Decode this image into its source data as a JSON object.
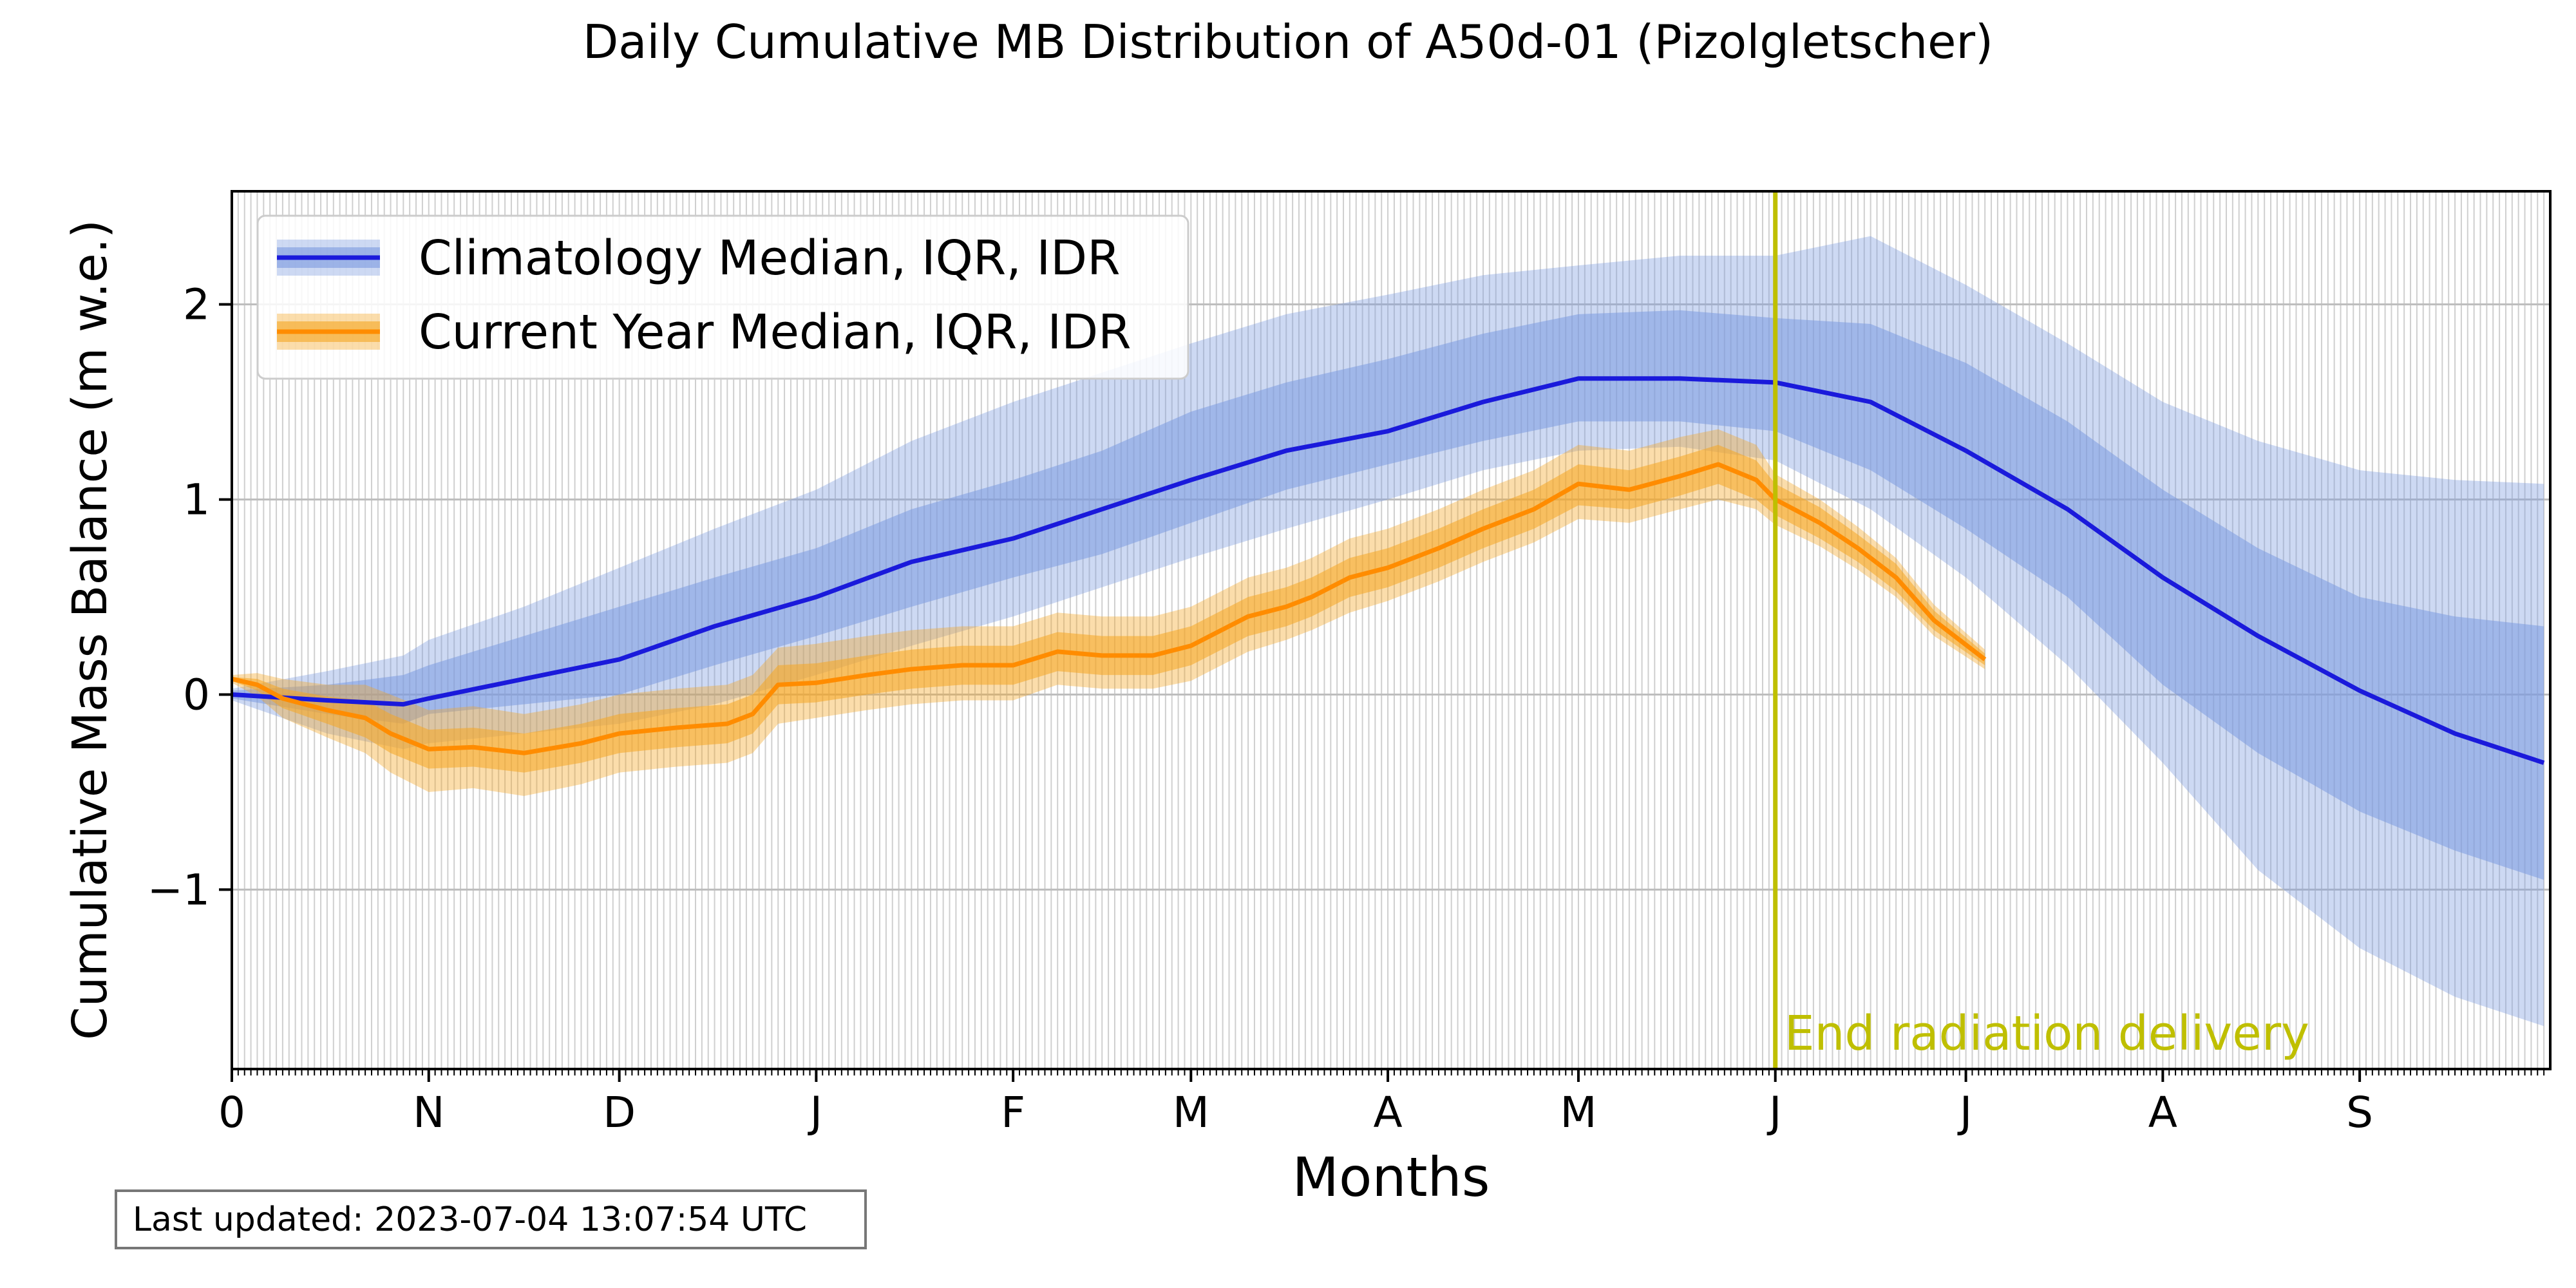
{
  "chart_data": {
    "type": "area",
    "title": "Daily Cumulative MB Distribution of A50d-01 (Pizolgletscher)",
    "xlabel": "Months",
    "ylabel": "Cumulative Mass Balance (m w.e.)",
    "x_ticks": [
      {
        "day": 0,
        "label": "0"
      },
      {
        "day": 31,
        "label": "N"
      },
      {
        "day": 61,
        "label": "D"
      },
      {
        "day": 92,
        "label": "J"
      },
      {
        "day": 123,
        "label": "F"
      },
      {
        "day": 151,
        "label": "M"
      },
      {
        "day": 182,
        "label": "A"
      },
      {
        "day": 212,
        "label": "M"
      },
      {
        "day": 243,
        "label": "J"
      },
      {
        "day": 273,
        "label": "J"
      },
      {
        "day": 304,
        "label": "A"
      },
      {
        "day": 335,
        "label": "S"
      }
    ],
    "xlim": [
      0,
      365
    ],
    "ylim": [
      -1.92,
      2.58
    ],
    "y_ticks": [
      -1,
      0,
      1,
      2
    ],
    "grid": true,
    "legend_position": "top-left",
    "series": [
      {
        "name": "Climatology Median, IQR, IDR",
        "color": "#1a1adb",
        "fill_color": "#7b9ae0",
        "x": [
          0,
          15,
          27,
          31,
          46,
          61,
          76,
          92,
          107,
          123,
          137,
          151,
          166,
          182,
          197,
          212,
          228,
          243,
          258,
          273,
          289,
          304,
          319,
          335,
          350,
          364
        ],
        "median": [
          0.0,
          -0.03,
          -0.05,
          -0.02,
          0.08,
          0.18,
          0.35,
          0.5,
          0.68,
          0.8,
          0.95,
          1.1,
          1.25,
          1.35,
          1.5,
          1.62,
          1.62,
          1.6,
          1.5,
          1.25,
          0.95,
          0.6,
          0.3,
          0.02,
          -0.2,
          -0.35
        ],
        "iqr_low": [
          -0.02,
          -0.1,
          -0.15,
          -0.1,
          -0.05,
          0.0,
          0.15,
          0.3,
          0.45,
          0.6,
          0.72,
          0.88,
          1.05,
          1.18,
          1.3,
          1.4,
          1.4,
          1.35,
          1.15,
          0.85,
          0.5,
          0.05,
          -0.3,
          -0.6,
          -0.8,
          -0.95
        ],
        "iqr_high": [
          0.02,
          0.05,
          0.1,
          0.15,
          0.3,
          0.45,
          0.6,
          0.75,
          0.95,
          1.1,
          1.25,
          1.45,
          1.6,
          1.72,
          1.85,
          1.95,
          1.97,
          1.93,
          1.9,
          1.7,
          1.4,
          1.05,
          0.75,
          0.5,
          0.4,
          0.35
        ],
        "idr_low": [
          -0.03,
          -0.2,
          -0.28,
          -0.25,
          -0.2,
          -0.15,
          -0.05,
          0.1,
          0.25,
          0.4,
          0.55,
          0.7,
          0.85,
          1.0,
          1.15,
          1.25,
          1.27,
          1.2,
          0.95,
          0.6,
          0.15,
          -0.35,
          -0.9,
          -1.3,
          -1.55,
          -1.7
        ],
        "idr_high": [
          0.03,
          0.12,
          0.2,
          0.28,
          0.45,
          0.65,
          0.85,
          1.05,
          1.3,
          1.5,
          1.65,
          1.8,
          1.95,
          2.05,
          2.15,
          2.2,
          2.25,
          2.25,
          2.35,
          2.1,
          1.8,
          1.5,
          1.3,
          1.15,
          1.1,
          1.08
        ]
      },
      {
        "name": "Current Year Median, IQR, IDR",
        "color": "#ff8c00",
        "fill_color": "#f5a623",
        "x": [
          0,
          4,
          8,
          15,
          21,
          25,
          31,
          38,
          46,
          55,
          61,
          70,
          78,
          82,
          86,
          92,
          100,
          107,
          115,
          123,
          130,
          137,
          145,
          151,
          160,
          166,
          170,
          176,
          182,
          190,
          197,
          205,
          212,
          220,
          228,
          234,
          240,
          243,
          250,
          256,
          262,
          268,
          276
        ],
        "median": [
          0.08,
          0.05,
          -0.02,
          -0.08,
          -0.12,
          -0.2,
          -0.28,
          -0.27,
          -0.3,
          -0.25,
          -0.2,
          -0.17,
          -0.15,
          -0.1,
          0.05,
          0.06,
          0.1,
          0.13,
          0.15,
          0.15,
          0.22,
          0.2,
          0.2,
          0.25,
          0.4,
          0.45,
          0.5,
          0.6,
          0.65,
          0.75,
          0.85,
          0.95,
          1.08,
          1.05,
          1.12,
          1.18,
          1.1,
          1.0,
          0.88,
          0.75,
          0.6,
          0.38,
          0.18
        ],
        "iqr_low": [
          0.07,
          0.02,
          -0.07,
          -0.15,
          -0.22,
          -0.3,
          -0.38,
          -0.37,
          -0.4,
          -0.35,
          -0.3,
          -0.27,
          -0.25,
          -0.2,
          -0.05,
          -0.04,
          0.0,
          0.03,
          0.05,
          0.05,
          0.12,
          0.1,
          0.1,
          0.15,
          0.3,
          0.35,
          0.4,
          0.5,
          0.55,
          0.65,
          0.75,
          0.85,
          0.97,
          0.95,
          1.02,
          1.08,
          1.0,
          0.92,
          0.8,
          0.68,
          0.53,
          0.33,
          0.15
        ],
        "iqr_high": [
          0.09,
          0.08,
          0.03,
          -0.01,
          -0.03,
          -0.1,
          -0.18,
          -0.17,
          -0.2,
          -0.15,
          -0.1,
          -0.07,
          -0.05,
          0.0,
          0.15,
          0.16,
          0.2,
          0.23,
          0.25,
          0.25,
          0.32,
          0.3,
          0.3,
          0.35,
          0.5,
          0.55,
          0.6,
          0.7,
          0.75,
          0.85,
          0.95,
          1.05,
          1.18,
          1.15,
          1.22,
          1.28,
          1.2,
          1.08,
          0.96,
          0.82,
          0.67,
          0.43,
          0.21
        ],
        "idr_low": [
          0.06,
          -0.01,
          -0.12,
          -0.22,
          -0.3,
          -0.4,
          -0.5,
          -0.48,
          -0.52,
          -0.46,
          -0.4,
          -0.37,
          -0.35,
          -0.3,
          -0.15,
          -0.12,
          -0.08,
          -0.05,
          -0.03,
          -0.03,
          0.05,
          0.03,
          0.03,
          0.07,
          0.22,
          0.28,
          0.33,
          0.42,
          0.48,
          0.58,
          0.68,
          0.78,
          0.9,
          0.88,
          0.95,
          1.0,
          0.95,
          0.87,
          0.76,
          0.64,
          0.5,
          0.3,
          0.13
        ],
        "idr_high": [
          0.1,
          0.11,
          0.08,
          0.05,
          0.05,
          0.0,
          -0.08,
          -0.06,
          -0.1,
          -0.05,
          0.0,
          0.03,
          0.05,
          0.1,
          0.24,
          0.26,
          0.3,
          0.33,
          0.35,
          0.35,
          0.42,
          0.4,
          0.4,
          0.45,
          0.6,
          0.65,
          0.7,
          0.8,
          0.85,
          0.95,
          1.05,
          1.15,
          1.28,
          1.25,
          1.32,
          1.36,
          1.28,
          1.13,
          1.0,
          0.86,
          0.7,
          0.46,
          0.23
        ]
      }
    ],
    "annotations": [
      {
        "type": "vline",
        "x": 243,
        "color": "#bfbf00",
        "label": "End radiation delivery"
      }
    ]
  },
  "footer": {
    "last_updated": "Last updated: 2023-07-04 13:07:54 UTC"
  }
}
